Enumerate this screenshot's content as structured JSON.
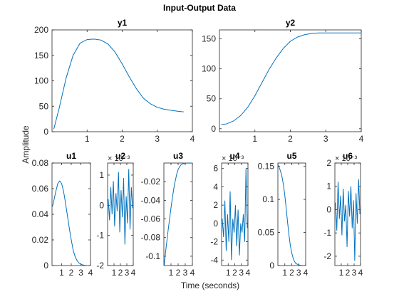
{
  "figure": {
    "title": "Input-Output Data",
    "xlabel": "Time (seconds)",
    "ylabel": "Amplitude",
    "line_color": "#0072bd",
    "axis_color": "#262626"
  },
  "chart_data": [
    {
      "type": "line",
      "id": "y1",
      "title": "y1",
      "xlim": [
        0,
        4
      ],
      "ylim": [
        0,
        200
      ],
      "xticks": [
        1,
        2,
        3,
        4
      ],
      "xticklabels": [
        "1",
        "2",
        "3",
        "4"
      ],
      "yticks": [
        0,
        50,
        100,
        150,
        200
      ],
      "yticklabels": [
        "0",
        "50",
        "100",
        "150",
        "200"
      ],
      "exponent": "",
      "series": [
        {
          "x": [
            0.05,
            0.2,
            0.4,
            0.6,
            0.8,
            1.0,
            1.2,
            1.4,
            1.6,
            1.8,
            2.0,
            2.2,
            2.4,
            2.6,
            2.8,
            3.0,
            3.2,
            3.4,
            3.6,
            3.75
          ],
          "y": [
            5,
            45,
            105,
            150,
            174,
            181,
            182,
            180,
            172,
            156,
            133,
            108,
            85,
            66,
            55,
            48,
            44,
            42,
            40,
            39
          ]
        }
      ]
    },
    {
      "type": "line",
      "id": "y2",
      "title": "y2",
      "xlim": [
        0,
        4
      ],
      "ylim": [
        -5,
        165
      ],
      "xticks": [
        1,
        2,
        3,
        4
      ],
      "xticklabels": [
        "1",
        "2",
        "3",
        "4"
      ],
      "yticks": [
        0,
        50,
        100,
        150
      ],
      "yticklabels": [
        "0",
        "50",
        "100",
        "150"
      ],
      "exponent": "",
      "series": [
        {
          "x": [
            0.05,
            0.2,
            0.4,
            0.6,
            0.8,
            1.0,
            1.2,
            1.4,
            1.6,
            1.8,
            2.0,
            2.2,
            2.4,
            2.6,
            2.8,
            3.0,
            3.2,
            3.4,
            3.6,
            3.8,
            4.0
          ],
          "y": [
            7,
            8,
            13,
            22,
            36,
            55,
            77,
            99,
            118,
            134,
            146,
            153,
            157,
            159,
            160,
            160,
            160,
            160,
            160,
            160,
            160
          ]
        }
      ]
    },
    {
      "type": "line",
      "id": "u1",
      "title": "u1",
      "xlim": [
        0,
        4
      ],
      "ylim": [
        0,
        0.08
      ],
      "xticks": [
        1,
        2,
        3,
        4
      ],
      "xticklabels": [
        "1",
        "2",
        "3",
        "4"
      ],
      "yticks": [
        0,
        0.02,
        0.04,
        0.06,
        0.08
      ],
      "yticklabels": [
        "0",
        "0.02",
        "0.04",
        "0.06",
        "0.08"
      ],
      "exponent": "",
      "series": [
        {
          "x": [
            0.05,
            0.2,
            0.4,
            0.6,
            0.8,
            1.0,
            1.2,
            1.4,
            1.6,
            1.8,
            2.0,
            2.2,
            2.4,
            2.6,
            2.8,
            3.0,
            3.2,
            3.4,
            3.6,
            3.8
          ],
          "y": [
            0.046,
            0.051,
            0.058,
            0.064,
            0.066,
            0.064,
            0.058,
            0.049,
            0.039,
            0.029,
            0.02,
            0.012,
            0.007,
            0.004,
            0.002,
            0.001,
            0.0005,
            0.0002,
            0.0001,
            0.0
          ]
        }
      ]
    },
    {
      "type": "line",
      "id": "u2",
      "title": "u2",
      "xlim": [
        0,
        4
      ],
      "ylim": [
        -2,
        1.4
      ],
      "xticks": [
        1,
        2,
        3,
        4
      ],
      "xticklabels": [
        "1",
        "2",
        "3",
        "4"
      ],
      "yticks": [
        -2,
        -1,
        0,
        1
      ],
      "yticklabels": [
        "-2",
        "-1",
        "0",
        "1"
      ],
      "exponent": "× 10⁻³",
      "series": [
        {
          "x": [
            0.1,
            0.3,
            0.5,
            0.7,
            0.9,
            1.1,
            1.3,
            1.5,
            1.7,
            1.9,
            2.1,
            2.3,
            2.5,
            2.7,
            2.9,
            3.1,
            3.3,
            3.5,
            3.7,
            3.9
          ],
          "y": [
            0.2,
            -0.5,
            0.6,
            -0.3,
            0.8,
            -0.7,
            0.4,
            -0.2,
            1.1,
            -0.9,
            0.5,
            -0.4,
            0.9,
            -1.3,
            0.3,
            -0.6,
            1.2,
            -0.8,
            0.6,
            -0.1
          ]
        }
      ]
    },
    {
      "type": "line",
      "id": "u3",
      "title": "u3",
      "xlim": [
        0,
        4
      ],
      "ylim": [
        -0.11,
        0
      ],
      "xticks": [
        1,
        2,
        3,
        4
      ],
      "xticklabels": [
        "1",
        "2",
        "3",
        "4"
      ],
      "yticks": [
        -0.1,
        -0.08,
        -0.06,
        -0.04,
        -0.02
      ],
      "yticklabels": [
        "-0.1",
        "-0.08",
        "-0.06",
        "-0.04",
        "-0.02"
      ],
      "exponent": "",
      "series": [
        {
          "x": [
            0.05,
            0.2,
            0.4,
            0.6,
            0.8,
            1.0,
            1.2,
            1.4,
            1.6,
            1.8,
            2.0,
            2.2,
            2.4,
            2.6,
            2.8,
            3.0,
            3.2,
            3.4,
            3.6,
            3.8
          ],
          "y": [
            -0.11,
            -0.098,
            -0.085,
            -0.072,
            -0.06,
            -0.048,
            -0.037,
            -0.027,
            -0.019,
            -0.012,
            -0.007,
            -0.004,
            -0.002,
            -0.001,
            -0.0005,
            -0.0002,
            -0.0001,
            -0.0001,
            -0.0001,
            -0.0001
          ]
        }
      ]
    },
    {
      "type": "line",
      "id": "u4",
      "title": "u4",
      "xlim": [
        0,
        4
      ],
      "ylim": [
        -4.6,
        6.6
      ],
      "xticks": [
        1,
        2,
        3,
        4
      ],
      "xticklabels": [
        "1",
        "2",
        "3",
        "4"
      ],
      "yticks": [
        -4,
        -2,
        0,
        2,
        4,
        6
      ],
      "yticklabels": [
        "-4",
        "-2",
        "0",
        "2",
        "4",
        "6"
      ],
      "exponent": "× 10⁻³",
      "series": [
        {
          "x": [
            0.1,
            0.3,
            0.5,
            0.7,
            0.9,
            1.1,
            1.3,
            1.5,
            1.7,
            1.9,
            2.1,
            2.3,
            2.5,
            2.7,
            2.9,
            3.1,
            3.3,
            3.5,
            3.7,
            3.9
          ],
          "y": [
            0.5,
            -1.5,
            2.5,
            -3.0,
            1.0,
            -2.0,
            3.5,
            -4.0,
            0.5,
            -1.0,
            2.0,
            -2.5,
            1.5,
            -3.5,
            0.0,
            -1.0,
            1.0,
            -2.0,
            6.0,
            -0.5
          ]
        }
      ]
    },
    {
      "type": "line",
      "id": "u5",
      "title": "u5",
      "xlim": [
        0,
        4
      ],
      "ylim": [
        0,
        0.155
      ],
      "xticks": [
        1,
        2,
        3,
        4
      ],
      "xticklabels": [
        "1",
        "2",
        "3",
        "4"
      ],
      "yticks": [
        0,
        0.05,
        0.1,
        0.15
      ],
      "yticklabels": [
        "0",
        "0.05",
        "0.1",
        "0.15"
      ],
      "exponent": "",
      "series": [
        {
          "x": [
            0.05,
            0.2,
            0.4,
            0.6,
            0.8,
            1.0,
            1.2,
            1.4,
            1.6,
            1.8,
            2.0,
            2.2,
            2.4,
            2.6,
            2.8,
            3.0,
            3.2,
            3.4,
            3.6,
            3.8
          ],
          "y": [
            0.152,
            0.148,
            0.142,
            0.134,
            0.122,
            0.106,
            0.086,
            0.065,
            0.046,
            0.03,
            0.019,
            0.011,
            0.006,
            0.003,
            0.002,
            0.001,
            0.0005,
            0.0002,
            0.0001,
            0.0
          ]
        }
      ]
    },
    {
      "type": "line",
      "id": "u6",
      "title": "u6",
      "xlim": [
        0,
        4
      ],
      "ylim": [
        -2.4,
        2
      ],
      "xticks": [
        1,
        2,
        3,
        4
      ],
      "xticklabels": [
        "1",
        "2",
        "3",
        "4"
      ],
      "yticks": [
        -2,
        -1,
        0,
        1,
        2
      ],
      "yticklabels": [
        "-2",
        "-1",
        "0",
        "1",
        "2"
      ],
      "exponent": "× 10⁻³",
      "series": [
        {
          "x": [
            0.1,
            0.3,
            0.5,
            0.7,
            0.9,
            1.1,
            1.3,
            1.5,
            1.7,
            1.9,
            2.1,
            2.3,
            2.5,
            2.7,
            2.9,
            3.1,
            3.3,
            3.5,
            3.7,
            3.9
          ],
          "y": [
            0.3,
            -0.9,
            1.2,
            -0.4,
            0.6,
            -1.1,
            0.9,
            -0.5,
            0.2,
            -1.6,
            0.8,
            -0.3,
            1.0,
            -0.8,
            0.4,
            -2.2,
            0.7,
            -0.6,
            1.3,
            -0.2
          ]
        }
      ]
    }
  ]
}
